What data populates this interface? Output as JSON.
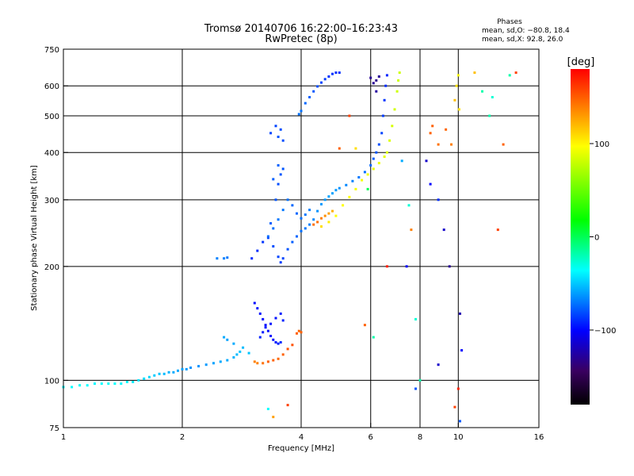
{
  "chart_data": {
    "type": "scatter",
    "title": "Tromsø 20140706 16:22:00–16:23:43",
    "subtitle": "RwPretec (8p)",
    "xlabel": "Frequency [MHz]",
    "ylabel": "Stationary phase Virtual Height [km]",
    "x_scale": "log",
    "y_scale": "log",
    "xlim": [
      1,
      16
    ],
    "ylim": [
      75,
      750
    ],
    "x_ticks": [
      1,
      2,
      4,
      6,
      8,
      10,
      16
    ],
    "x_tick_labels": [
      "1",
      "2",
      "4",
      "6",
      "8",
      "10",
      "16"
    ],
    "y_ticks": [
      75,
      100,
      200,
      300,
      400,
      500,
      600,
      750
    ],
    "y_tick_labels": [
      "75",
      "100",
      "200",
      "300",
      "400",
      "500",
      "600",
      "750"
    ],
    "grid": true,
    "stats": {
      "heading": "Phases",
      "line_o": "mean, sd,O: −80.8, 18.4",
      "line_x": "mean, sd,X:  92.8, 26.0"
    },
    "colorbar": {
      "unit_label": "[deg]",
      "range": [
        -180,
        180
      ],
      "ticks": [
        100,
        0,
        -100
      ],
      "tick_labels": [
        "100",
        "0",
        "−100"
      ],
      "colormap": [
        "#000000",
        "#3a0060",
        "#0000ff",
        "#00ffff",
        "#00ff00",
        "#ffff00",
        "#ff0000"
      ]
    },
    "series": [
      {
        "points": [
          [
            1.0,
            96,
            -60
          ],
          [
            1.05,
            96,
            -60
          ],
          [
            1.1,
            97,
            -58
          ],
          [
            1.15,
            97,
            -60
          ],
          [
            1.2,
            98,
            -62
          ],
          [
            1.25,
            98,
            -60
          ],
          [
            1.3,
            98,
            -58
          ],
          [
            1.35,
            98,
            -60
          ],
          [
            1.4,
            98,
            -62
          ],
          [
            1.45,
            99,
            -60
          ],
          [
            1.5,
            99,
            -64
          ],
          [
            1.55,
            100,
            -66
          ],
          [
            1.6,
            101,
            -68
          ],
          [
            1.65,
            102,
            -70
          ],
          [
            1.7,
            103,
            -72
          ],
          [
            1.75,
            104,
            -74
          ],
          [
            1.8,
            104,
            -76
          ],
          [
            1.85,
            105,
            -78
          ],
          [
            1.9,
            105,
            -80
          ],
          [
            1.95,
            106,
            -80
          ],
          [
            2.0,
            107,
            -82
          ],
          [
            2.05,
            107,
            -84
          ],
          [
            2.1,
            108,
            -86
          ],
          [
            2.2,
            109,
            -86
          ],
          [
            2.3,
            110,
            -84
          ],
          [
            2.4,
            111,
            -82
          ],
          [
            2.5,
            112,
            -80
          ],
          [
            2.6,
            113,
            -80
          ],
          [
            2.7,
            115,
            -78
          ],
          [
            2.75,
            117,
            -76
          ],
          [
            2.8,
            119,
            -74
          ]
        ]
      },
      {
        "points": [
          [
            2.55,
            130,
            -80
          ],
          [
            2.6,
            128,
            -82
          ],
          [
            2.7,
            125,
            -80
          ],
          [
            2.85,
            122,
            -76
          ],
          [
            2.95,
            118,
            -74
          ]
        ]
      },
      {
        "points": [
          [
            3.05,
            160,
            -118
          ],
          [
            3.1,
            155,
            -116
          ],
          [
            3.15,
            150,
            -116
          ],
          [
            3.2,
            145,
            -118
          ],
          [
            3.25,
            140,
            -118
          ],
          [
            3.3,
            135,
            -116
          ],
          [
            3.35,
            131,
            -116
          ],
          [
            3.4,
            128,
            -116
          ],
          [
            3.45,
            126,
            -114
          ],
          [
            3.5,
            125,
            -112
          ],
          [
            3.55,
            126,
            -110
          ],
          [
            3.15,
            130,
            -112
          ],
          [
            3.2,
            134,
            -114
          ],
          [
            3.25,
            138,
            -116
          ],
          [
            3.35,
            141,
            -116
          ],
          [
            3.45,
            146,
            -116
          ],
          [
            3.55,
            150,
            -114
          ],
          [
            3.6,
            144,
            -112
          ]
        ]
      },
      {
        "points": [
          [
            3.05,
            112,
            140
          ],
          [
            3.1,
            111,
            140
          ],
          [
            3.2,
            111,
            145
          ],
          [
            3.3,
            112,
            150
          ],
          [
            3.4,
            113,
            150
          ],
          [
            3.5,
            114,
            148
          ],
          [
            3.6,
            117,
            150
          ],
          [
            3.7,
            121,
            155
          ],
          [
            3.8,
            124,
            155
          ],
          [
            3.9,
            133,
            150
          ],
          [
            3.95,
            135,
            150
          ],
          [
            4.0,
            134,
            150
          ]
        ]
      },
      {
        "points": [
          [
            2.45,
            210,
            -90
          ],
          [
            2.55,
            210,
            -90
          ],
          [
            2.6,
            211,
            -92
          ]
        ]
      },
      {
        "points": [
          [
            3.0,
            210,
            -110
          ],
          [
            3.1,
            220,
            -110
          ],
          [
            3.2,
            232,
            -108
          ],
          [
            3.3,
            238,
            -105
          ],
          [
            3.4,
            226,
            -102
          ],
          [
            3.5,
            212,
            -104
          ],
          [
            3.55,
            205,
            -106
          ],
          [
            3.6,
            210,
            -104
          ],
          [
            3.7,
            222,
            -100
          ],
          [
            3.8,
            232,
            -98
          ],
          [
            3.9,
            240,
            -96
          ],
          [
            4.0,
            248,
            -94
          ],
          [
            4.1,
            252,
            -92
          ],
          [
            4.2,
            258,
            -90
          ],
          [
            4.3,
            266,
            -88
          ],
          [
            4.4,
            280,
            -86
          ],
          [
            4.5,
            292,
            -84
          ],
          [
            4.6,
            300,
            -84
          ],
          [
            4.7,
            306,
            -82
          ],
          [
            4.8,
            312,
            -82
          ],
          [
            4.9,
            318,
            -84
          ],
          [
            5.0,
            322,
            -86
          ],
          [
            5.2,
            328,
            -88
          ],
          [
            5.4,
            336,
            -90
          ],
          [
            5.6,
            344,
            -92
          ],
          [
            5.8,
            355,
            -94
          ],
          [
            6.0,
            370,
            -96
          ],
          [
            6.1,
            385,
            -98
          ],
          [
            6.2,
            400,
            -100
          ],
          [
            6.3,
            420,
            -102
          ],
          [
            6.4,
            450,
            -104
          ],
          [
            6.45,
            500,
            -106
          ],
          [
            6.5,
            550,
            -108
          ],
          [
            6.55,
            600,
            -110
          ],
          [
            6.6,
            640,
            -112
          ]
        ]
      },
      {
        "points": [
          [
            3.3,
            240,
            -94
          ],
          [
            3.4,
            252,
            -94
          ],
          [
            3.5,
            266,
            -92
          ],
          [
            3.6,
            282,
            -92
          ],
          [
            3.7,
            300,
            -94
          ],
          [
            3.8,
            290,
            -96
          ],
          [
            3.9,
            276,
            -96
          ],
          [
            4.0,
            268,
            -94
          ],
          [
            4.1,
            274,
            -92
          ],
          [
            4.2,
            282,
            -90
          ]
        ]
      },
      {
        "points": [
          [
            3.35,
            260,
            -98
          ],
          [
            3.45,
            300,
            -100
          ],
          [
            3.5,
            330,
            -102
          ],
          [
            3.55,
            350,
            -100
          ],
          [
            3.6,
            362,
            -100
          ],
          [
            3.4,
            340,
            -98
          ],
          [
            3.5,
            370,
            -98
          ]
        ]
      },
      {
        "points": [
          [
            3.35,
            450,
            -104
          ],
          [
            3.45,
            470,
            -104
          ],
          [
            3.55,
            460,
            -102
          ],
          [
            3.6,
            430,
            -102
          ],
          [
            3.5,
            440,
            -100
          ]
        ]
      },
      {
        "points": [
          [
            3.95,
            505,
            -94
          ],
          [
            4.0,
            515,
            -94
          ],
          [
            4.1,
            540,
            -96
          ],
          [
            4.2,
            560,
            -98
          ],
          [
            4.3,
            580,
            -100
          ],
          [
            4.4,
            598,
            -102
          ],
          [
            4.5,
            612,
            -104
          ],
          [
            4.6,
            625,
            -106
          ],
          [
            4.7,
            635,
            -108
          ],
          [
            4.8,
            645,
            -108
          ],
          [
            4.9,
            650,
            -110
          ],
          [
            5.0,
            650,
            -110
          ]
        ]
      },
      {
        "points": [
          [
            4.3,
            258,
            145
          ],
          [
            4.4,
            262,
            145
          ],
          [
            4.5,
            268,
            140
          ],
          [
            4.6,
            272,
            135
          ],
          [
            4.7,
            276,
            130
          ],
          [
            4.8,
            280,
            125
          ]
        ]
      },
      {
        "points": [
          [
            4.5,
            255,
            110
          ],
          [
            4.7,
            262,
            105
          ],
          [
            4.9,
            272,
            100
          ],
          [
            5.1,
            290,
            100
          ],
          [
            5.3,
            305,
            100
          ],
          [
            5.5,
            320,
            98
          ],
          [
            5.7,
            338,
            96
          ],
          [
            5.9,
            350,
            94
          ],
          [
            6.1,
            362,
            92
          ],
          [
            6.3,
            375,
            92
          ],
          [
            6.5,
            390,
            90
          ],
          [
            6.6,
            400,
            88
          ],
          [
            6.7,
            430,
            86
          ],
          [
            6.8,
            470,
            84
          ],
          [
            6.9,
            520,
            82
          ],
          [
            7.0,
            580,
            80
          ],
          [
            7.05,
            620,
            80
          ],
          [
            7.1,
            650,
            80
          ]
        ]
      },
      {
        "points": [
          [
            6.0,
            630,
            -140
          ],
          [
            6.1,
            610,
            -140
          ],
          [
            6.2,
            620,
            -142
          ],
          [
            6.3,
            635,
            -140
          ],
          [
            6.2,
            580,
            -138
          ]
        ]
      },
      {
        "points": [
          [
            8.5,
            450,
            150
          ],
          [
            8.6,
            470,
            150
          ],
          [
            8.9,
            420,
            145
          ],
          [
            9.3,
            460,
            148
          ],
          [
            9.6,
            420,
            140
          ],
          [
            9.8,
            550,
            120
          ],
          [
            9.9,
            600,
            110
          ],
          [
            10.0,
            640,
            100
          ],
          [
            10.05,
            520,
            110
          ]
        ]
      },
      {
        "points": [
          [
            8.3,
            380,
            -130
          ],
          [
            8.5,
            330,
            -120
          ],
          [
            8.9,
            300,
            -110
          ],
          [
            9.2,
            250,
            -130
          ],
          [
            9.5,
            200,
            -140
          ],
          [
            10.1,
            150,
            -135
          ],
          [
            10.2,
            120,
            -120
          ],
          [
            10.0,
            95,
            170
          ],
          [
            9.8,
            85,
            160
          ],
          [
            10.1,
            78,
            -100
          ]
        ]
      },
      {
        "points": [
          [
            11.5,
            580,
            -40
          ],
          [
            12.0,
            500,
            -40
          ],
          [
            12.2,
            560,
            -50
          ],
          [
            13.5,
            640,
            -40
          ],
          [
            14.0,
            650,
            160
          ],
          [
            13.0,
            420,
            150
          ],
          [
            12.6,
            250,
            160
          ],
          [
            11.0,
            650,
            120
          ]
        ]
      },
      {
        "points": [
          [
            5.0,
            410,
            150
          ],
          [
            5.3,
            500,
            160
          ],
          [
            5.5,
            410,
            110
          ],
          [
            5.9,
            320,
            -20
          ],
          [
            6.6,
            200,
            170
          ],
          [
            6.1,
            130,
            -40
          ],
          [
            7.2,
            380,
            -80
          ],
          [
            7.5,
            290,
            -50
          ],
          [
            7.6,
            250,
            140
          ],
          [
            7.4,
            200,
            -120
          ],
          [
            7.8,
            95,
            -100
          ],
          [
            8.0,
            100,
            -40
          ],
          [
            8.9,
            110,
            -130
          ],
          [
            7.8,
            145,
            -50
          ],
          [
            5.8,
            140,
            150
          ],
          [
            3.7,
            86,
            160
          ],
          [
            3.4,
            80,
            130
          ],
          [
            3.3,
            84,
            -60
          ]
        ]
      }
    ]
  }
}
